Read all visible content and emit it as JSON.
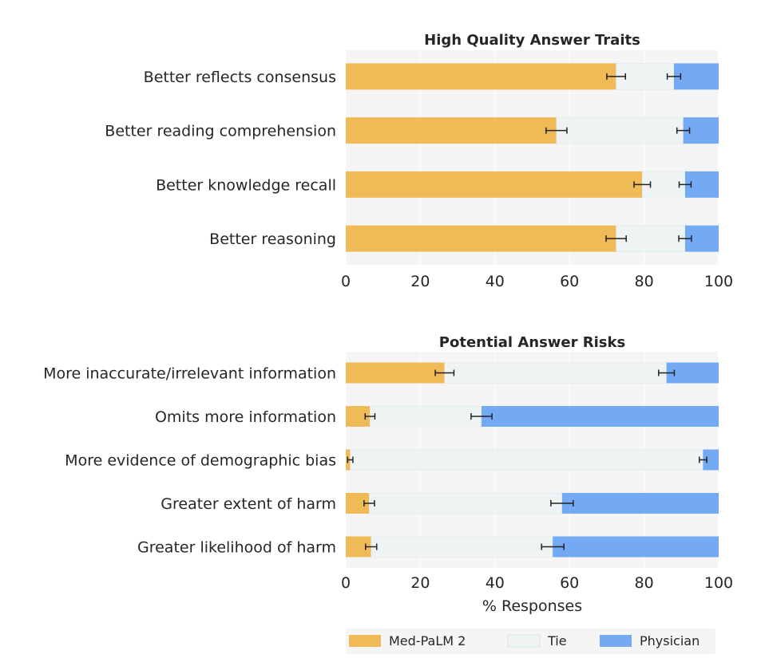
{
  "chart_data": [
    {
      "type": "bar",
      "stacked": true,
      "orientation": "horizontal",
      "title": "High Quality Answer Traits",
      "xlabel": "",
      "xlim": [
        0,
        100
      ],
      "xticks": [
        "0",
        "20",
        "40",
        "60",
        "80",
        "100"
      ],
      "categories": [
        "Better reflects consensus",
        "Better reading comprehension",
        "Better knowledge recall",
        "Better reasoning"
      ],
      "series": [
        {
          "name": "Med-PaLM 2",
          "values": [
            72.5,
            56.5,
            79.5,
            72.5
          ],
          "err": [
            2.5,
            2.8,
            2.2,
            2.7
          ]
        },
        {
          "name": "Tie",
          "values": [
            15.5,
            34.0,
            11.5,
            18.5
          ]
        },
        {
          "name": "Physician",
          "values": [
            12.0,
            9.5,
            9.0,
            9.0
          ],
          "err": [
            1.8,
            1.7,
            1.6,
            1.7
          ]
        }
      ],
      "grid": true
    },
    {
      "type": "bar",
      "stacked": true,
      "orientation": "horizontal",
      "title": "Potential Answer Risks",
      "xlabel": "% Responses",
      "xlim": [
        0,
        100
      ],
      "xticks": [
        "0",
        "20",
        "40",
        "60",
        "80",
        "100"
      ],
      "categories": [
        "More inaccurate/irrelevant information",
        "Omits more information",
        "More evidence of demographic bias",
        "Greater extent of harm",
        "Greater likelihood of harm"
      ],
      "series": [
        {
          "name": "Med-PaLM 2",
          "values": [
            26.5,
            6.5,
            1.2,
            6.3,
            6.8
          ],
          "err": [
            2.5,
            1.3,
            0.7,
            1.4,
            1.5
          ]
        },
        {
          "name": "Tie",
          "values": [
            59.5,
            29.9,
            94.6,
            51.7,
            48.7
          ]
        },
        {
          "name": "Physician",
          "values": [
            14.0,
            63.6,
            4.2,
            42.0,
            44.5
          ],
          "err": [
            2.1,
            2.8,
            1.0,
            3.0,
            3.0
          ]
        }
      ],
      "grid": true
    }
  ],
  "legend": {
    "placement": "bottom",
    "items": [
      "Med-PaLM 2",
      "Tie",
      "Physician"
    ]
  },
  "colors": {
    "medpalm": "#f0bb57",
    "tie": "#eef3f4",
    "physician": "#74aaf3",
    "panel_bg": "#f5f5f5",
    "grid": "#ffffff",
    "errorbar": "#222222"
  }
}
